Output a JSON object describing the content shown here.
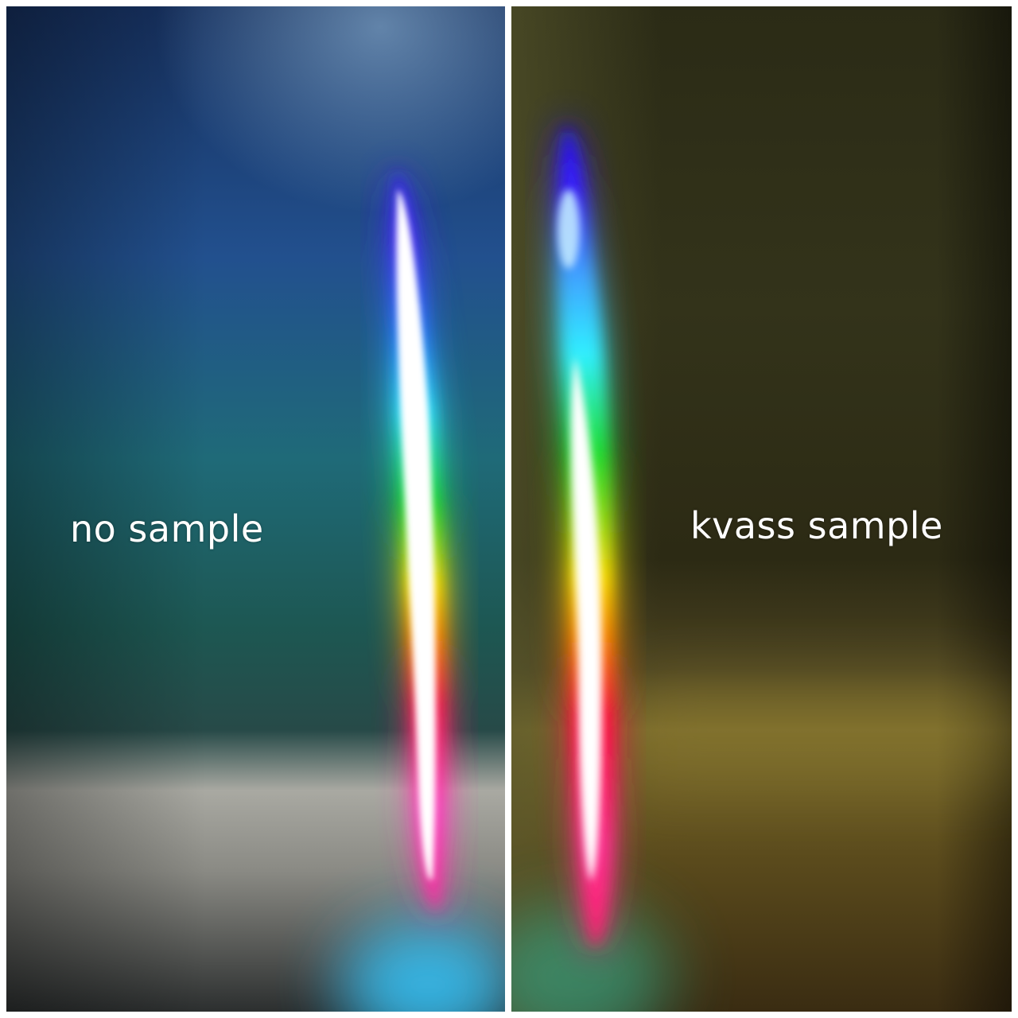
{
  "panels": {
    "left": {
      "label": "no sample"
    },
    "right": {
      "label": "kvass sample"
    }
  },
  "colors": {
    "border": "#ffffff",
    "left_background_top": "#1f3f7a",
    "left_background_mid": "#1d6a6a",
    "left_background_bottom": "#9a9a96",
    "right_background_top": "#3d3d1e",
    "right_background_bottom": "#6e5a22",
    "spectrum_violet": "#4a2cff",
    "spectrum_cyan": "#3ff2ff",
    "spectrum_green": "#20e030",
    "spectrum_yellow": "#ffe000",
    "spectrum_red": "#ff1040",
    "spectrum_magenta": "#ff40c0"
  }
}
